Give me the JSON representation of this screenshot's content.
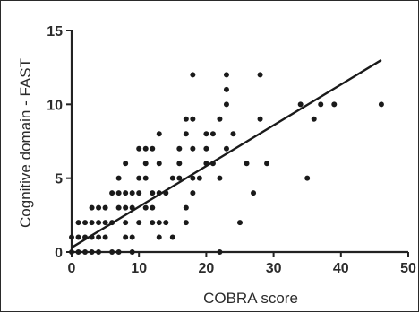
{
  "chart_data": {
    "type": "scatter",
    "xlabel": "COBRA score",
    "ylabel": "Cognitive domain - FAST",
    "xlim": [
      0,
      50
    ],
    "ylim": [
      0,
      15
    ],
    "x_ticks": [
      "0",
      "10",
      "20",
      "30",
      "40",
      "50"
    ],
    "y_ticks": [
      "0",
      "5",
      "10",
      "15"
    ],
    "grid": false,
    "series": [
      {
        "marker_color": "#1a1a1a",
        "points": [
          [
            0,
            0
          ],
          [
            1,
            0
          ],
          [
            2,
            0
          ],
          [
            3,
            0
          ],
          [
            4,
            0
          ],
          [
            6,
            0
          ],
          [
            7,
            0
          ],
          [
            9,
            0
          ],
          [
            22,
            0
          ],
          [
            0,
            1
          ],
          [
            1,
            1
          ],
          [
            2,
            1
          ],
          [
            3,
            1
          ],
          [
            4,
            1
          ],
          [
            5,
            1
          ],
          [
            8,
            1
          ],
          [
            9,
            1
          ],
          [
            13,
            1
          ],
          [
            15,
            1
          ],
          [
            1,
            2
          ],
          [
            2,
            2
          ],
          [
            3,
            2
          ],
          [
            4,
            2
          ],
          [
            5,
            2
          ],
          [
            6,
            2
          ],
          [
            8,
            2
          ],
          [
            10,
            2
          ],
          [
            12,
            2
          ],
          [
            13,
            2
          ],
          [
            14,
            2
          ],
          [
            17,
            2
          ],
          [
            25,
            2
          ],
          [
            3,
            3
          ],
          [
            4,
            3
          ],
          [
            5,
            3
          ],
          [
            7,
            3
          ],
          [
            8,
            3
          ],
          [
            9,
            3
          ],
          [
            11,
            3
          ],
          [
            12,
            3
          ],
          [
            17,
            3
          ],
          [
            6,
            4
          ],
          [
            7,
            4
          ],
          [
            8,
            4
          ],
          [
            9,
            4
          ],
          [
            10,
            4
          ],
          [
            12,
            4
          ],
          [
            13,
            4
          ],
          [
            14,
            4
          ],
          [
            18,
            4
          ],
          [
            27,
            4
          ],
          [
            7,
            5
          ],
          [
            10,
            5
          ],
          [
            11,
            5
          ],
          [
            15,
            5
          ],
          [
            16,
            5
          ],
          [
            18,
            5
          ],
          [
            19,
            5
          ],
          [
            22,
            5
          ],
          [
            35,
            5
          ],
          [
            8,
            6
          ],
          [
            11,
            6
          ],
          [
            13,
            6
          ],
          [
            16,
            6
          ],
          [
            20,
            6
          ],
          [
            21,
            6
          ],
          [
            26,
            6
          ],
          [
            29,
            6
          ],
          [
            10,
            7
          ],
          [
            11,
            7
          ],
          [
            12,
            7
          ],
          [
            16,
            7
          ],
          [
            18,
            7
          ],
          [
            20,
            7
          ],
          [
            23,
            7
          ],
          [
            13,
            8
          ],
          [
            17,
            8
          ],
          [
            20,
            8
          ],
          [
            21,
            8
          ],
          [
            24,
            8
          ],
          [
            17,
            9
          ],
          [
            18,
            9
          ],
          [
            22,
            9
          ],
          [
            28,
            9
          ],
          [
            36,
            9
          ],
          [
            23,
            10
          ],
          [
            34,
            10
          ],
          [
            37,
            10
          ],
          [
            39,
            10
          ],
          [
            46,
            10
          ],
          [
            23,
            11
          ],
          [
            18,
            12
          ],
          [
            23,
            12
          ],
          [
            28,
            12
          ]
        ]
      }
    ],
    "regression_line": {
      "x": [
        0,
        46
      ],
      "y": [
        0.3,
        13.0
      ]
    }
  }
}
